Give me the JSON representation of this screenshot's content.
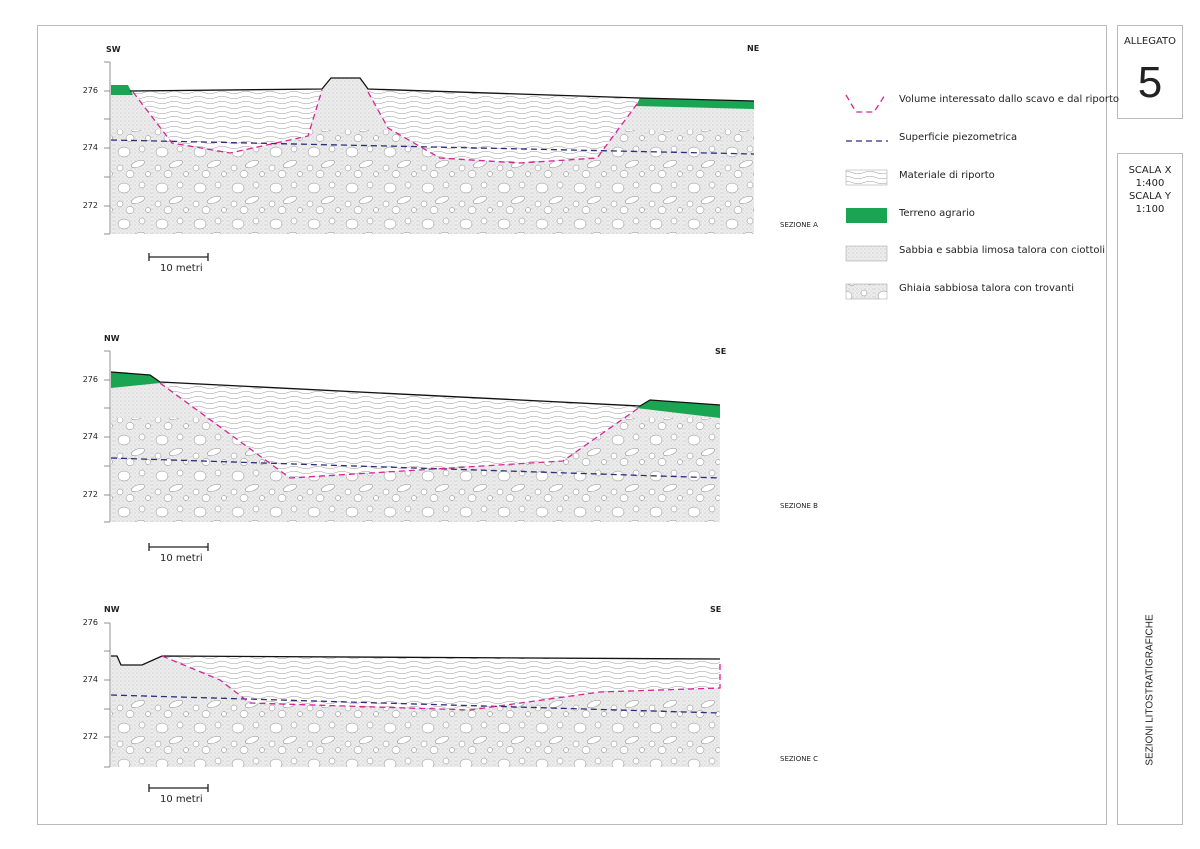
{
  "sections": [
    {
      "left_dir": "SW",
      "right_dir": "NE",
      "name": "SEZIONE A",
      "ticks": [
        "276",
        "274",
        "272"
      ],
      "scale_label": "10 metri"
    },
    {
      "left_dir": "NW",
      "right_dir": "SE",
      "name": "SEZIONE B",
      "ticks": [
        "276",
        "274",
        "272"
      ],
      "scale_label": "10 metri"
    },
    {
      "left_dir": "NW",
      "right_dir": "SE",
      "name": "SEZIONE C",
      "ticks": [
        "276",
        "274",
        "272"
      ],
      "scale_label": "10 metri"
    }
  ],
  "legend": [
    {
      "label": "Volume interessato dallo scavo e dal riporto",
      "icon": "pink-dashed-excavation"
    },
    {
      "label": "Superficie piezometrica",
      "icon": "blue-dashed-line"
    },
    {
      "label": "Materiale di riporto",
      "icon": "wavy-hatch"
    },
    {
      "label": "Terreno agrario",
      "icon": "green-fill"
    },
    {
      "label": "Sabbia e sabbia limosa talora con ciottoli",
      "icon": "stipple-fill"
    },
    {
      "label": "Ghiaia sabbiosa talora con trovanti",
      "icon": "gravel-fill"
    }
  ],
  "sidebar": {
    "allegato_label": "ALLEGATO",
    "allegato_number": "5",
    "scale_x_label": "SCALA X",
    "scale_x_value": "1:400",
    "scale_y_label": "SCALA Y",
    "scale_y_value": "1:100",
    "title": "SEZIONI LITOSTRATIGRAFICHE"
  },
  "colors": {
    "terreno": "#1aa552",
    "excavation": "#d6249a",
    "piezometric": "#2b2f7a",
    "surface": "#111111"
  }
}
